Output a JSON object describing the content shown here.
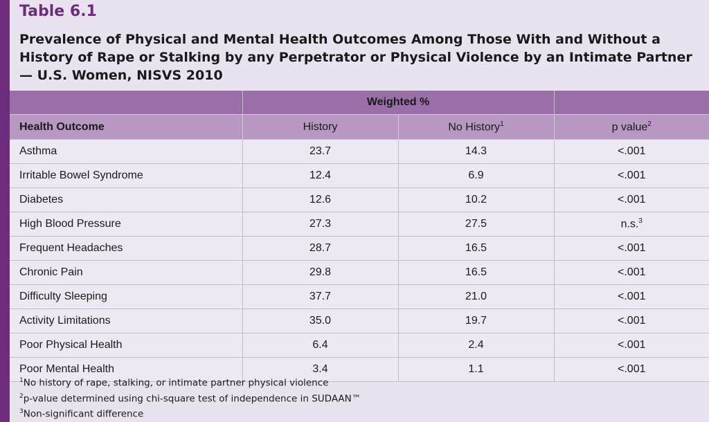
{
  "table_label": "Table 6.1",
  "title": "Prevalence of Physical and Mental Health Outcomes Among Those With and Without a History of Rape or Stalking by any Perpetrator or Physical Violence by an Intimate Partner — U.S. Women, NISVS 2010",
  "group_header": "Weighted %",
  "columns": {
    "outcome": "Health Outcome",
    "history": "History",
    "no_history": "No History",
    "no_history_sup": "1",
    "p_value": "p value",
    "p_value_sup": "2"
  },
  "rows": [
    {
      "outcome": "Asthma",
      "history": "23.7",
      "no_history": "14.3",
      "p": "<.001",
      "p_sup": ""
    },
    {
      "outcome": "Irritable Bowel Syndrome",
      "history": "12.4",
      "no_history": "6.9",
      "p": "<.001",
      "p_sup": ""
    },
    {
      "outcome": "Diabetes",
      "history": "12.6",
      "no_history": "10.2",
      "p": "<.001",
      "p_sup": ""
    },
    {
      "outcome": "High Blood Pressure",
      "history": "27.3",
      "no_history": "27.5",
      "p": "n.s.",
      "p_sup": "3"
    },
    {
      "outcome": "Frequent Headaches",
      "history": "28.7",
      "no_history": "16.5",
      "p": "<.001",
      "p_sup": ""
    },
    {
      "outcome": "Chronic Pain",
      "history": "29.8",
      "no_history": "16.5",
      "p": "<.001",
      "p_sup": ""
    },
    {
      "outcome": "Difficulty Sleeping",
      "history": "37.7",
      "no_history": "21.0",
      "p": "<.001",
      "p_sup": ""
    },
    {
      "outcome": "Activity Limitations",
      "history": "35.0",
      "no_history": "19.7",
      "p": "<.001",
      "p_sup": ""
    },
    {
      "outcome": "Poor Physical Health",
      "history": "6.4",
      "no_history": "2.4",
      "p": "<.001",
      "p_sup": ""
    },
    {
      "outcome": "Poor Mental Health",
      "history": "3.4",
      "no_history": "1.1",
      "p": "<.001",
      "p_sup": ""
    }
  ],
  "footnotes": [
    {
      "mark": "1",
      "text": "No history of rape, stalking, or intimate partner physical violence"
    },
    {
      "mark": "2",
      "text": "p-value determined using chi-square test of independence in SUDAAN™"
    },
    {
      "mark": "3",
      "text": "Non-significant difference"
    }
  ],
  "colors": {
    "accent": "#6e2c7e",
    "header_dark": "#9a6ea6",
    "header_light": "#b898c2",
    "background": "#e9e3ef"
  }
}
